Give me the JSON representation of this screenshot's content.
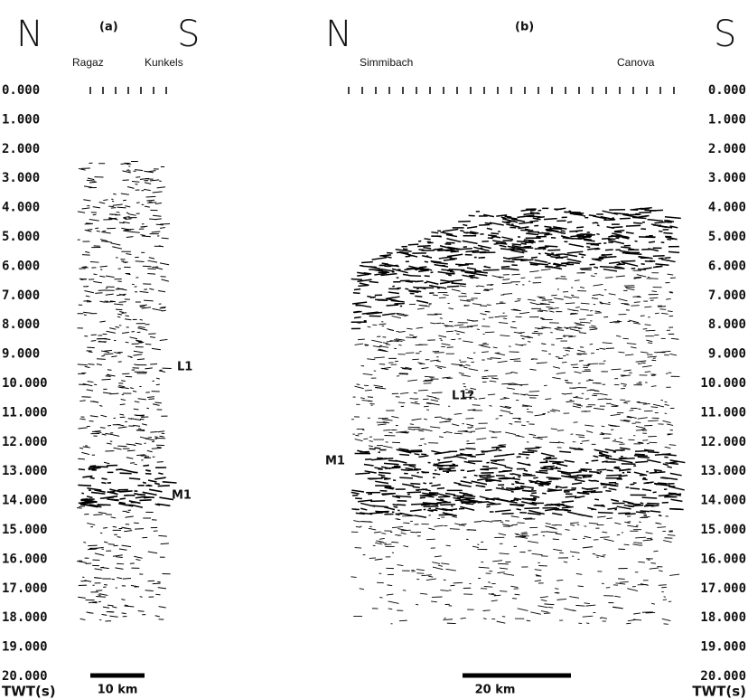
{
  "panels": [
    {
      "label": "(a)",
      "north": "N",
      "south": "S",
      "left_site": "Ragaz",
      "right_site": "Kunkels",
      "reflectors": [
        "L1",
        "M1"
      ],
      "scale_bar": "10 km"
    },
    {
      "label": "(b)",
      "north": "N",
      "south": "S",
      "left_site": "Simmibach",
      "right_site": "Canova",
      "reflectors": [
        "L1?",
        "M1"
      ],
      "scale_bar": "20 km"
    }
  ],
  "axis": {
    "label": "TWT(s)",
    "ticks": [
      "0.000",
      "1.000",
      "2.000",
      "3.000",
      "4.000",
      "5.000",
      "6.000",
      "7.000",
      "8.000",
      "9.000",
      "10.000",
      "11.000",
      "12.000",
      "13.000",
      "14.000",
      "15.000",
      "16.000",
      "17.000",
      "18.000",
      "19.000",
      "20.000"
    ]
  }
}
